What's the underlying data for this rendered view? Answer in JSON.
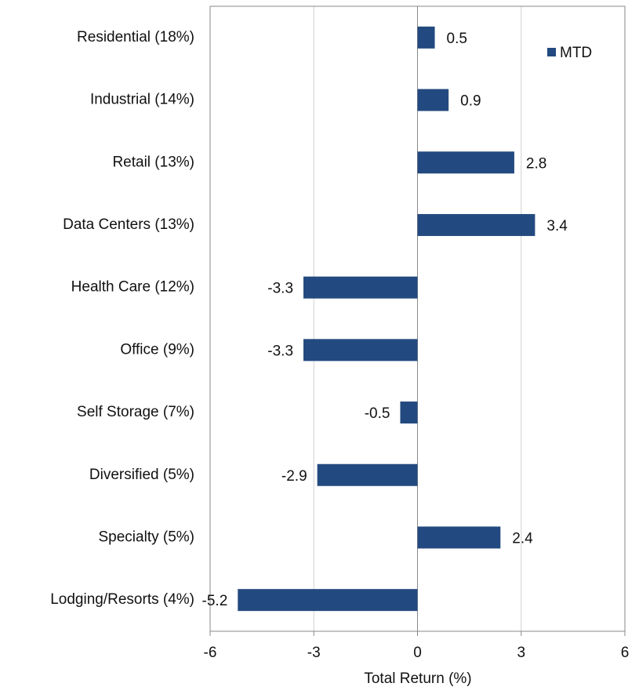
{
  "chart_data": {
    "type": "hbar",
    "categories": [
      "Residential (18%)",
      "Industrial (14%)",
      "Retail (13%)",
      "Data Centers (13%)",
      "Health Care (12%)",
      "Office (9%)",
      "Self Storage (7%)",
      "Diversified (5%)",
      "Specialty (5%)",
      "Lodging/Resorts (4%)"
    ],
    "series": [
      {
        "name": "MTD",
        "color": "#234a80",
        "values": [
          0.5,
          0.9,
          2.8,
          3.4,
          -3.3,
          -3.3,
          -0.5,
          -2.9,
          2.4,
          -5.2
        ]
      }
    ],
    "xlabel": "Total Return (%)",
    "xlim": [
      -6,
      6
    ],
    "xticks": [
      -6,
      -3,
      0,
      3,
      6
    ],
    "grid": true,
    "legend": "upper right"
  }
}
